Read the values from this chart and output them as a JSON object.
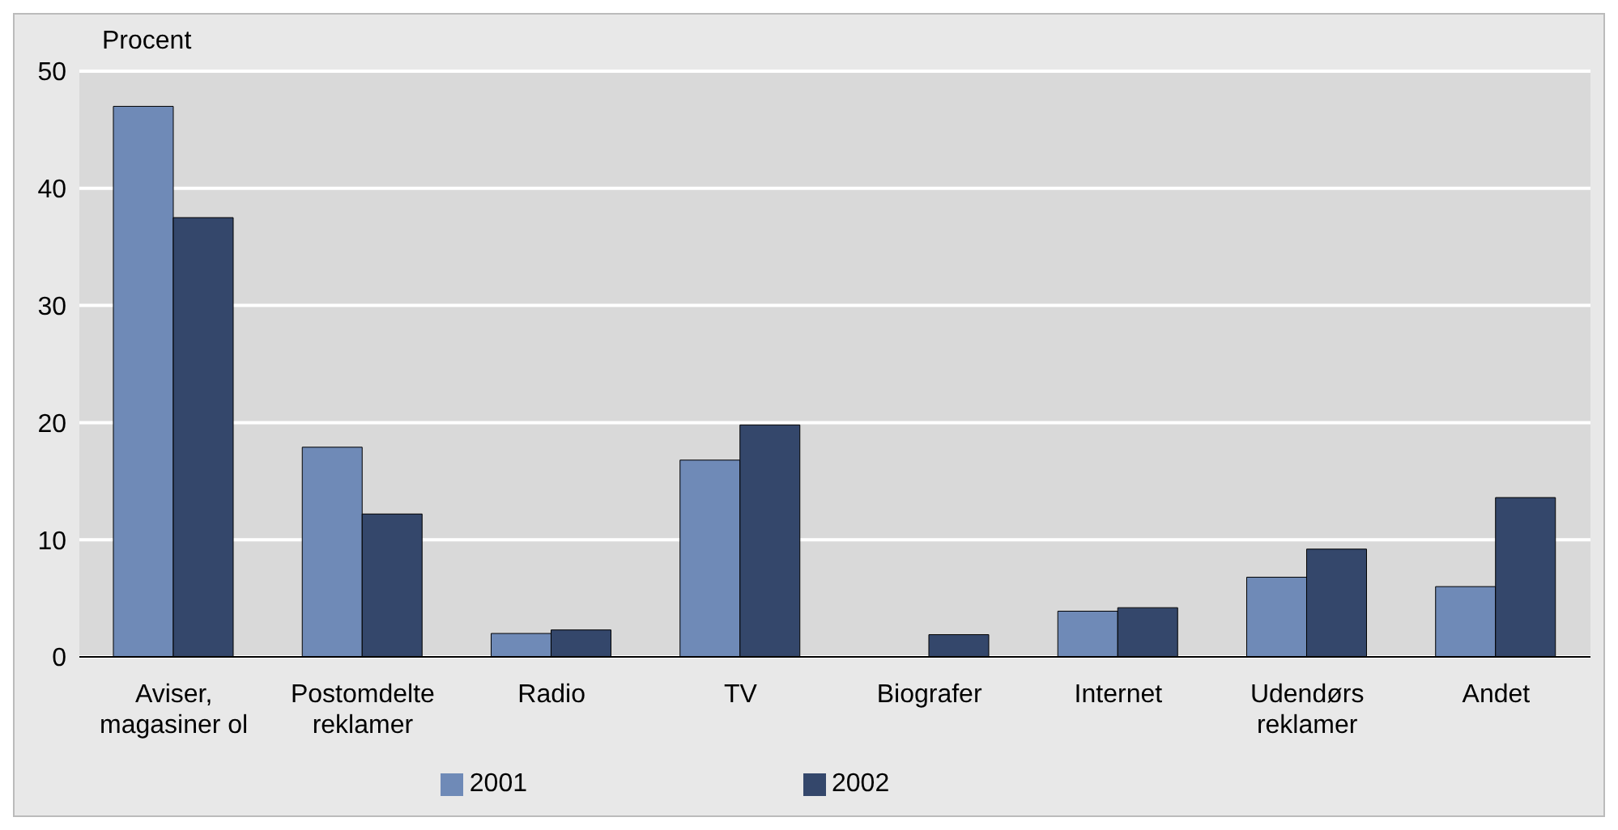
{
  "chart_data": {
    "type": "bar",
    "ylabel": "Procent",
    "categories": [
      "Aviser, magasiner ol",
      "Postomdelte reklamer",
      "Radio",
      "TV",
      "Biografer",
      "Internet",
      "Udendørs reklamer",
      "Andet"
    ],
    "series": [
      {
        "name": "2001",
        "color": "#6f8ab7",
        "values": [
          47,
          17.9,
          2,
          16.8,
          null,
          3.9,
          6.8,
          6
        ]
      },
      {
        "name": "2002",
        "color": "#34476b",
        "values": [
          37.5,
          12.2,
          2.3,
          19.8,
          1.9,
          4.2,
          9.2,
          13.6
        ]
      }
    ],
    "ylim": [
      0,
      50
    ],
    "yticks": [
      0,
      10,
      20,
      30,
      40,
      50
    ],
    "grid": "y",
    "legend": "bottom"
  }
}
